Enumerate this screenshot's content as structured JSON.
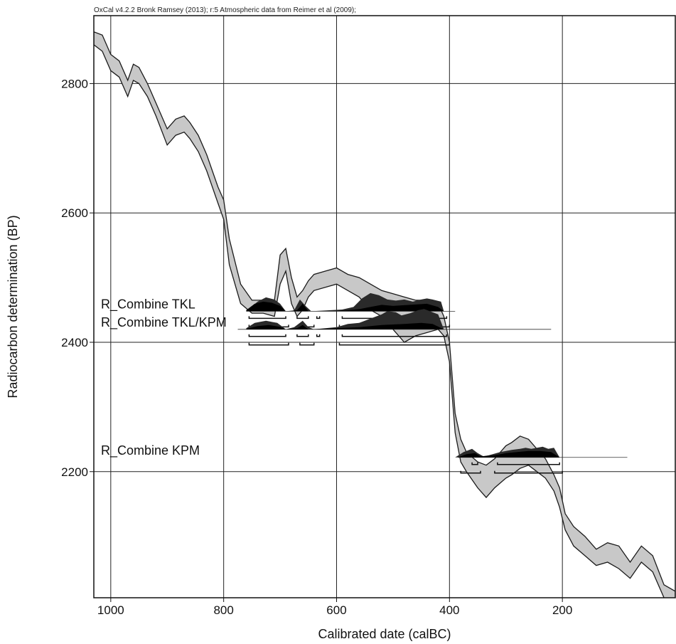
{
  "chart_data": {
    "type": "area",
    "credit": "OxCal v4.2.2 Bronk Ramsey (2013); r:5 Atmospheric data from Reimer et al (2009);",
    "xlabel": "Calibrated date (calBC)",
    "ylabel": "Radiocarbon determination (BP)",
    "xlim": [
      1030,
      0
    ],
    "ylim": [
      2005,
      2905
    ],
    "x_ticks": [
      1000,
      800,
      600,
      400,
      200
    ],
    "y_ticks": [
      2200,
      2400,
      2600,
      2800
    ],
    "grid": true,
    "calibration_curve": {
      "x": [
        1030,
        1015,
        1000,
        985,
        970,
        960,
        950,
        935,
        920,
        900,
        885,
        870,
        860,
        845,
        830,
        810,
        800,
        790,
        770,
        750,
        730,
        710,
        700,
        690,
        680,
        670,
        660,
        650,
        640,
        620,
        600,
        580,
        560,
        540,
        520,
        500,
        480,
        460,
        440,
        420,
        410,
        400,
        390,
        380,
        370,
        350,
        335,
        320,
        300,
        290,
        275,
        260,
        245,
        230,
        215,
        205,
        195,
        180,
        160,
        140,
        120,
        100,
        80,
        60,
        40,
        20,
        0
      ],
      "upper": [
        2880,
        2875,
        2845,
        2835,
        2805,
        2830,
        2825,
        2800,
        2770,
        2730,
        2745,
        2750,
        2740,
        2720,
        2690,
        2640,
        2620,
        2560,
        2490,
        2465,
        2465,
        2465,
        2535,
        2545,
        2500,
        2470,
        2480,
        2495,
        2505,
        2510,
        2515,
        2505,
        2500,
        2490,
        2480,
        2475,
        2470,
        2465,
        2465,
        2460,
        2440,
        2400,
        2290,
        2250,
        2230,
        2215,
        2210,
        2220,
        2240,
        2245,
        2255,
        2250,
        2235,
        2220,
        2195,
        2175,
        2135,
        2115,
        2100,
        2080,
        2090,
        2085,
        2060,
        2085,
        2070,
        2025,
        2015
      ],
      "lower": [
        2860,
        2850,
        2820,
        2810,
        2780,
        2805,
        2800,
        2780,
        2750,
        2705,
        2720,
        2725,
        2715,
        2695,
        2665,
        2615,
        2590,
        2520,
        2460,
        2445,
        2445,
        2440,
        2490,
        2510,
        2460,
        2440,
        2450,
        2470,
        2480,
        2485,
        2490,
        2480,
        2470,
        2450,
        2440,
        2420,
        2400,
        2410,
        2415,
        2420,
        2410,
        2370,
        2260,
        2215,
        2200,
        2175,
        2160,
        2175,
        2190,
        2195,
        2205,
        2210,
        2200,
        2190,
        2170,
        2145,
        2110,
        2085,
        2070,
        2055,
        2060,
        2050,
        2035,
        2060,
        2045,
        2005,
        1995
      ]
    },
    "distributions": [
      {
        "name": "R_Combine TKL",
        "baseline": 2448,
        "line_range": [
          760,
          390
        ],
        "prior_points": [
          [
            755,
            0.1
          ],
          [
            740,
            0.45
          ],
          [
            725,
            0.65
          ],
          [
            710,
            0.55
          ],
          [
            700,
            0.35
          ],
          [
            690,
            0
          ],
          [
            680,
            0
          ],
          [
            675,
            0.05
          ],
          [
            665,
            0.55
          ],
          [
            655,
            0.25
          ],
          [
            645,
            0
          ],
          [
            610,
            0.05
          ],
          [
            590,
            0.08
          ],
          [
            570,
            0.2
          ],
          [
            555,
            0.6
          ],
          [
            540,
            0.85
          ],
          [
            525,
            0.75
          ],
          [
            510,
            0.55
          ],
          [
            495,
            0.5
          ],
          [
            480,
            0.55
          ],
          [
            465,
            0.45
          ],
          [
            450,
            0.55
          ],
          [
            440,
            0.6
          ],
          [
            430,
            0.55
          ],
          [
            415,
            0.45
          ],
          [
            410,
            0
          ]
        ],
        "posterior_points": [
          [
            760,
            0.05
          ],
          [
            745,
            0.35
          ],
          [
            730,
            0.45
          ],
          [
            715,
            0.4
          ],
          [
            700,
            0.25
          ],
          [
            690,
            0
          ],
          [
            670,
            0.05
          ],
          [
            660,
            0.35
          ],
          [
            650,
            0
          ],
          [
            600,
            0.02
          ],
          [
            580,
            0.05
          ],
          [
            560,
            0.1
          ],
          [
            540,
            0.2
          ],
          [
            520,
            0.3
          ],
          [
            500,
            0.25
          ],
          [
            470,
            0.3
          ],
          [
            440,
            0.35
          ],
          [
            420,
            0.2
          ],
          [
            410,
            0
          ]
        ],
        "ranges_68": [
          [
            755,
            690
          ],
          [
            670,
            650
          ],
          [
            635,
            630
          ],
          [
            590,
            405
          ]
        ],
        "ranges_95": [
          [
            755,
            685
          ],
          [
            665,
            640
          ],
          [
            595,
            400
          ]
        ]
      },
      {
        "name": "R_Combine TKL/KPM",
        "baseline": 2420,
        "line_range": [
          775,
          220
        ],
        "prior_points": [
          [
            760,
            0.05
          ],
          [
            745,
            0.3
          ],
          [
            725,
            0.4
          ],
          [
            705,
            0.3
          ],
          [
            690,
            0
          ],
          [
            675,
            0.1
          ],
          [
            660,
            0.4
          ],
          [
            650,
            0.1
          ],
          [
            640,
            0
          ],
          [
            600,
            0.1
          ],
          [
            580,
            0.25
          ],
          [
            560,
            0.3
          ],
          [
            540,
            0.5
          ],
          [
            520,
            0.7
          ],
          [
            510,
            0.85
          ],
          [
            495,
            0.8
          ],
          [
            485,
            0.65
          ],
          [
            470,
            0.75
          ],
          [
            455,
            0.9
          ],
          [
            445,
            0.95
          ],
          [
            435,
            0.85
          ],
          [
            420,
            0.7
          ],
          [
            410,
            0
          ]
        ],
        "posterior_points": [
          [
            760,
            0.02
          ],
          [
            740,
            0.15
          ],
          [
            720,
            0.2
          ],
          [
            700,
            0.12
          ],
          [
            690,
            0
          ],
          [
            670,
            0.05
          ],
          [
            660,
            0.2
          ],
          [
            650,
            0
          ],
          [
            600,
            0.05
          ],
          [
            560,
            0.1
          ],
          [
            520,
            0.2
          ],
          [
            480,
            0.25
          ],
          [
            450,
            0.3
          ],
          [
            430,
            0.25
          ],
          [
            410,
            0
          ]
        ],
        "ranges_68": [
          [
            755,
            690
          ],
          [
            670,
            650
          ],
          [
            635,
            630
          ],
          [
            590,
            405
          ]
        ],
        "ranges_95": [
          [
            755,
            685
          ],
          [
            665,
            640
          ],
          [
            595,
            400
          ]
        ]
      },
      {
        "name": "R_Combine KPM",
        "baseline": 2222,
        "line_range": [
          385,
          85
        ],
        "prior_points": [
          [
            390,
            0
          ],
          [
            375,
            0.25
          ],
          [
            360,
            0.4
          ],
          [
            350,
            0.2
          ],
          [
            340,
            0.05
          ],
          [
            330,
            0.1
          ],
          [
            310,
            0.25
          ],
          [
            290,
            0.35
          ],
          [
            275,
            0.4
          ],
          [
            265,
            0.45
          ],
          [
            255,
            0.4
          ],
          [
            245,
            0.45
          ],
          [
            235,
            0.5
          ],
          [
            225,
            0.4
          ],
          [
            215,
            0.45
          ],
          [
            205,
            0
          ]
        ],
        "posterior_points": [
          [
            385,
            0
          ],
          [
            370,
            0.15
          ],
          [
            355,
            0.2
          ],
          [
            345,
            0.05
          ],
          [
            320,
            0.1
          ],
          [
            300,
            0.2
          ],
          [
            280,
            0.25
          ],
          [
            260,
            0.3
          ],
          [
            240,
            0.3
          ],
          [
            220,
            0.25
          ],
          [
            205,
            0
          ]
        ],
        "ranges_68": [
          [
            360,
            350
          ],
          [
            315,
            205
          ]
        ],
        "ranges_95": [
          [
            380,
            345
          ],
          [
            320,
            200
          ]
        ]
      }
    ]
  }
}
